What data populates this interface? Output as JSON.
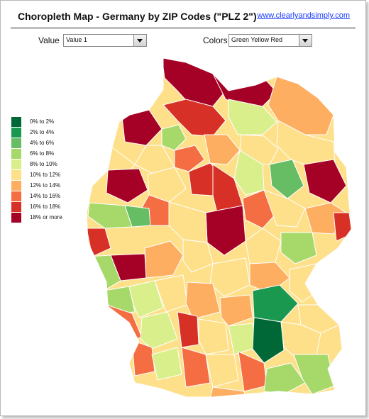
{
  "header": {
    "title": "Choropleth Map - Germany by ZIP Codes (\"PLZ 2\")",
    "link": "www.clearlyandsimply.com"
  },
  "controls": {
    "value_label": "Value",
    "value_selected": "Value 1",
    "colors_label": "Colors",
    "colors_selected": "Green Yellow Red"
  },
  "legend": [
    {
      "label": "0%  to 2%",
      "color": "#006837"
    },
    {
      "label": "2% to 4%",
      "color": "#1a9850"
    },
    {
      "label": "4% to 6%",
      "color": "#66bd63"
    },
    {
      "label": "6% to 8%",
      "color": "#a6d96a"
    },
    {
      "label": "8% to 10%",
      "color": "#d9ef8b"
    },
    {
      "label": "10% to 12%",
      "color": "#fee08b"
    },
    {
      "label": "12% to 14%",
      "color": "#fdae61"
    },
    {
      "label": "14% to 16%",
      "color": "#f46d43"
    },
    {
      "label": "16% to 18%",
      "color": "#d73027"
    },
    {
      "label": "18% or more",
      "color": "#a50026"
    }
  ],
  "map": {
    "name": "Germany ZIP code regions (PLZ 2)",
    "border_color": "#ffffff"
  }
}
